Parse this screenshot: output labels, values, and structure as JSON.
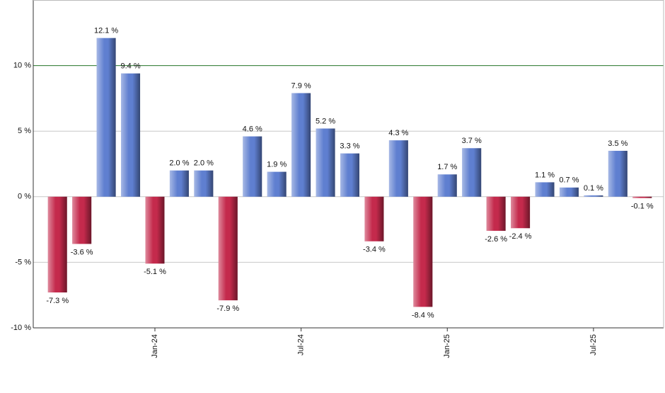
{
  "chart_data": {
    "type": "bar",
    "categories": [
      null,
      null,
      null,
      null,
      "Jan-24",
      null,
      null,
      null,
      null,
      null,
      "Jul-24",
      null,
      null,
      null,
      null,
      null,
      "Jan-25",
      null,
      null,
      null,
      null,
      null,
      "Jul-25",
      null,
      null
    ],
    "values": [
      -7.3,
      -3.6,
      12.1,
      9.4,
      -5.1,
      2.0,
      2.0,
      -7.9,
      4.6,
      1.9,
      7.9,
      5.2,
      3.3,
      -3.4,
      4.3,
      -8.4,
      1.7,
      3.7,
      -2.6,
      -2.4,
      1.1,
      0.7,
      0.1,
      3.5,
      -0.1
    ],
    "value_labels": [
      "-7.3 %",
      "-3.6 %",
      "12.1 %",
      "9.4 %",
      "-5.1 %",
      "2.0 %",
      "2.0 %",
      "-7.9 %",
      "4.6 %",
      "1.9 %",
      "7.9 %",
      "5.2 %",
      "3.3 %",
      "-3.4 %",
      "4.3 %",
      "-8.4 %",
      "1.7 %",
      "3.7 %",
      "-2.6 %",
      "-2.4 %",
      "1.1 %",
      "0.7 %",
      "0.1 %",
      "3.5 %",
      "-0.1 %"
    ],
    "positive_color": "#5f7fd0",
    "negative_color": "#c42a4c",
    "ylim": [
      -10,
      15
    ],
    "yticks": [
      {
        "value": -10,
        "label": "-10 %"
      },
      {
        "value": -5,
        "label": "-5 %"
      },
      {
        "value": 0,
        "label": "0 %"
      },
      {
        "value": 5,
        "label": "5 %"
      },
      {
        "value": 10,
        "label": "10 %"
      }
    ],
    "reference_line": {
      "value": 10,
      "color": "#2e7d32"
    },
    "grid": true
  }
}
